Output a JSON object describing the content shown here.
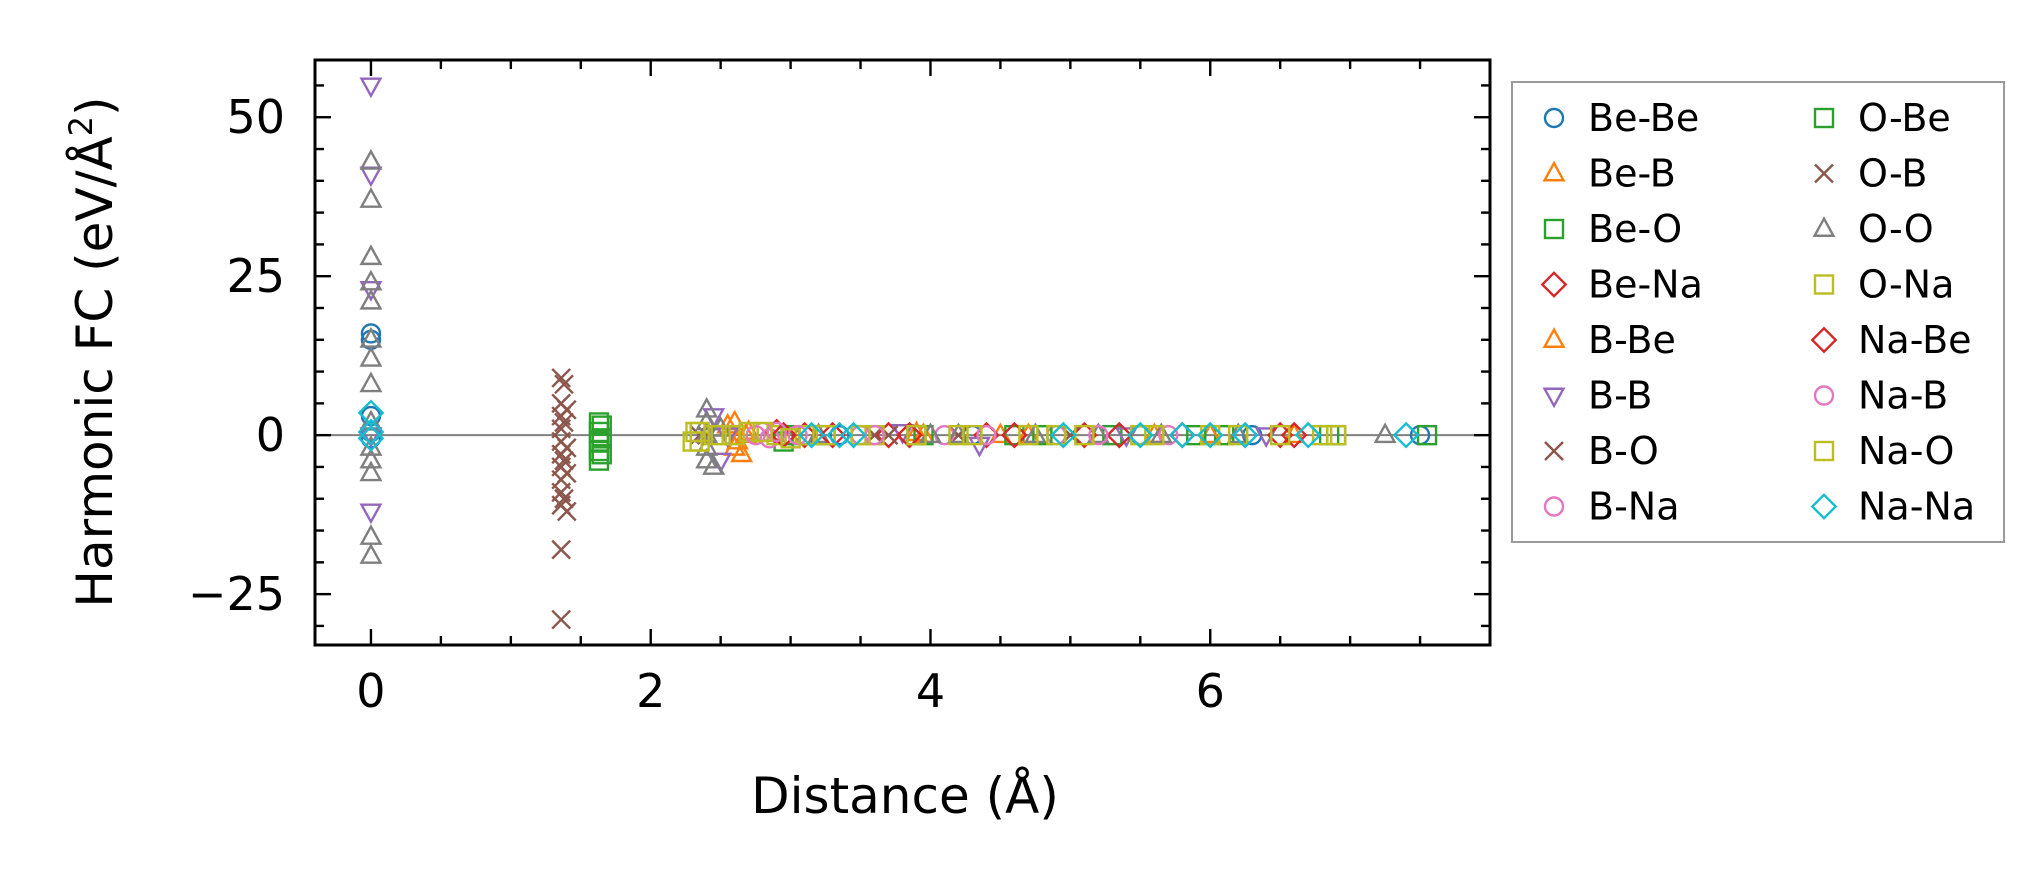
{
  "chart_data": {
    "type": "scatter",
    "xlabel": "Distance (Å)",
    "ylabel_main": "Harmonic FC (eV/Å",
    "ylabel_sup": "2",
    "ylabel_end": ")",
    "xlim": [
      -0.4,
      8.0
    ],
    "ylim": [
      -33,
      59
    ],
    "xticks": [
      0,
      2,
      4,
      6
    ],
    "xtick_labels": [
      "0",
      "2",
      "4",
      "6"
    ],
    "yticks": [
      -25,
      0,
      25,
      50
    ],
    "ytick_labels": [
      "−25",
      "0",
      "25",
      "50"
    ],
    "xminor_step": 0.5,
    "yminor_step": 5,
    "zero_line": true,
    "grid": false,
    "legend_position": "outside-right",
    "legend_columns": 2,
    "series": [
      {
        "name": "Be-Be",
        "marker": "circle",
        "color": "#1f77b4",
        "points": [
          [
            0,
            16
          ],
          [
            0,
            15
          ],
          [
            0,
            3
          ],
          [
            0,
            0.5
          ],
          [
            0,
            -0.5
          ],
          [
            3.35,
            0
          ],
          [
            4.3,
            0
          ],
          [
            5.5,
            0
          ],
          [
            6.3,
            0
          ],
          [
            7.5,
            0
          ]
        ]
      },
      {
        "name": "Be-B",
        "marker": "triangle-up",
        "color": "#ff7f0e",
        "points": [
          [
            2.6,
            2
          ],
          [
            2.62,
            -1
          ],
          [
            2.65,
            -3
          ],
          [
            2.7,
            0.5
          ],
          [
            3.9,
            0.3
          ],
          [
            4.5,
            0
          ],
          [
            5.6,
            0
          ],
          [
            6.6,
            0
          ]
        ]
      },
      {
        "name": "Be-O",
        "marker": "square",
        "color": "#2ca02c",
        "points": [
          [
            1.63,
            2
          ],
          [
            1.63,
            0.5
          ],
          [
            1.63,
            -1
          ],
          [
            1.63,
            -2.5
          ],
          [
            1.63,
            -4
          ],
          [
            2.95,
            -1
          ],
          [
            3.25,
            0
          ],
          [
            3.9,
            0
          ],
          [
            4.6,
            0
          ],
          [
            5.3,
            0
          ],
          [
            6.1,
            0
          ],
          [
            6.9,
            0
          ],
          [
            7.55,
            0
          ]
        ]
      },
      {
        "name": "Be-Na",
        "marker": "diamond",
        "color": "#d62728",
        "points": [
          [
            2.9,
            0.5
          ],
          [
            3.1,
            0
          ],
          [
            3.7,
            0
          ],
          [
            4.4,
            0
          ],
          [
            5.1,
            0
          ],
          [
            5.8,
            0
          ],
          [
            6.6,
            0
          ]
        ]
      },
      {
        "name": "B-Be",
        "marker": "triangle-up",
        "color": "#ff7f0e",
        "points": [
          [
            2.55,
            1.5
          ],
          [
            2.6,
            -2
          ],
          [
            2.68,
            0
          ],
          [
            3.95,
            0
          ],
          [
            4.7,
            0
          ],
          [
            6.0,
            0
          ]
        ]
      },
      {
        "name": "B-B",
        "marker": "triangle-down",
        "color": "#9467bd",
        "points": [
          [
            0,
            55
          ],
          [
            0,
            41
          ],
          [
            0,
            23
          ],
          [
            0,
            0
          ],
          [
            0,
            -12
          ],
          [
            2.45,
            3
          ],
          [
            2.5,
            -4
          ],
          [
            2.55,
            0
          ],
          [
            3.8,
            0.5
          ],
          [
            4.35,
            -1.5
          ],
          [
            5.4,
            0
          ],
          [
            6.4,
            0
          ]
        ]
      },
      {
        "name": "B-O",
        "marker": "x",
        "color": "#8c564b",
        "points": [
          [
            1.36,
            9
          ],
          [
            1.36,
            5
          ],
          [
            1.36,
            3
          ],
          [
            1.36,
            1
          ],
          [
            1.36,
            -1
          ],
          [
            1.36,
            -3
          ],
          [
            1.36,
            -5
          ],
          [
            1.36,
            -7
          ],
          [
            1.36,
            -9
          ],
          [
            1.36,
            -11
          ],
          [
            1.36,
            -18
          ],
          [
            1.36,
            -29
          ],
          [
            1.4,
            4
          ],
          [
            1.4,
            -2
          ],
          [
            1.4,
            -6
          ],
          [
            1.4,
            -12
          ],
          [
            2.35,
            0
          ],
          [
            3.6,
            0
          ],
          [
            4.2,
            0
          ],
          [
            5.0,
            0
          ]
        ]
      },
      {
        "name": "B-Na",
        "marker": "circle",
        "color": "#e377c2",
        "points": [
          [
            2.8,
            0.5
          ],
          [
            2.85,
            -0.5
          ],
          [
            3.0,
            0
          ],
          [
            3.5,
            0
          ],
          [
            4.1,
            0
          ],
          [
            4.9,
            0
          ],
          [
            5.7,
            0
          ]
        ]
      },
      {
        "name": "O-Be",
        "marker": "square",
        "color": "#2ca02c",
        "points": [
          [
            1.65,
            1.5
          ],
          [
            1.65,
            -0.5
          ],
          [
            1.65,
            -3
          ],
          [
            3.0,
            0
          ],
          [
            3.95,
            0
          ],
          [
            4.8,
            0
          ],
          [
            5.9,
            0
          ],
          [
            6.85,
            0
          ]
        ]
      },
      {
        "name": "O-B",
        "marker": "x",
        "color": "#8c564b",
        "points": [
          [
            1.38,
            8
          ],
          [
            1.38,
            2
          ],
          [
            1.38,
            -4
          ],
          [
            1.38,
            -10
          ],
          [
            2.4,
            0
          ],
          [
            3.7,
            0
          ]
        ]
      },
      {
        "name": "O-O",
        "marker": "triangle-up",
        "color": "#7f7f7f",
        "points": [
          [
            0,
            43
          ],
          [
            0,
            37
          ],
          [
            0,
            28
          ],
          [
            0,
            24
          ],
          [
            0,
            21
          ],
          [
            0,
            15
          ],
          [
            0,
            12
          ],
          [
            0,
            8
          ],
          [
            0,
            2
          ],
          [
            0,
            -2
          ],
          [
            0,
            -4
          ],
          [
            0,
            -6
          ],
          [
            0,
            -16
          ],
          [
            0,
            -19
          ],
          [
            2.4,
            4
          ],
          [
            2.4,
            2
          ],
          [
            2.4,
            0
          ],
          [
            2.4,
            -2
          ],
          [
            2.4,
            -4
          ],
          [
            2.45,
            -5
          ],
          [
            2.5,
            1
          ],
          [
            3.2,
            0
          ],
          [
            4.0,
            0
          ],
          [
            4.2,
            0
          ],
          [
            4.75,
            0
          ],
          [
            5.2,
            0
          ],
          [
            5.65,
            0
          ],
          [
            6.2,
            0
          ],
          [
            7.25,
            0
          ]
        ]
      },
      {
        "name": "O-Na",
        "marker": "square",
        "color": "#bcbd22",
        "points": [
          [
            2.35,
            0.5
          ],
          [
            2.35,
            -1
          ],
          [
            2.5,
            0
          ],
          [
            2.7,
            0.5
          ],
          [
            2.9,
            0
          ],
          [
            3.1,
            0
          ],
          [
            3.6,
            0
          ],
          [
            4.2,
            0
          ],
          [
            4.9,
            0
          ],
          [
            5.5,
            0
          ],
          [
            6.2,
            0
          ],
          [
            6.9,
            0
          ]
        ]
      },
      {
        "name": "Na-Be",
        "marker": "diamond",
        "color": "#d62728",
        "points": [
          [
            2.95,
            0
          ],
          [
            3.3,
            0
          ],
          [
            3.85,
            0
          ],
          [
            4.6,
            0
          ],
          [
            5.35,
            0
          ],
          [
            6.5,
            0
          ]
        ]
      },
      {
        "name": "Na-B",
        "marker": "circle",
        "color": "#e377c2",
        "points": [
          [
            2.75,
            0
          ],
          [
            2.9,
            0.5
          ],
          [
            3.05,
            0
          ],
          [
            3.6,
            0
          ],
          [
            4.4,
            0
          ],
          [
            5.2,
            0
          ]
        ]
      },
      {
        "name": "Na-O",
        "marker": "square",
        "color": "#bcbd22",
        "points": [
          [
            2.3,
            -1
          ],
          [
            2.32,
            0.5
          ],
          [
            2.45,
            0
          ],
          [
            2.6,
            0
          ],
          [
            2.8,
            0.5
          ],
          [
            3.0,
            -0.5
          ],
          [
            3.25,
            0
          ],
          [
            3.5,
            0
          ],
          [
            3.9,
            0
          ],
          [
            4.3,
            0
          ],
          [
            4.7,
            0
          ],
          [
            5.1,
            0
          ],
          [
            5.6,
            0
          ],
          [
            6.0,
            0
          ],
          [
            6.5,
            0
          ],
          [
            6.8,
            0
          ]
        ]
      },
      {
        "name": "Na-Na",
        "marker": "diamond",
        "color": "#17becf",
        "points": [
          [
            0,
            3.5
          ],
          [
            0,
            0.5
          ],
          [
            0,
            -0.5
          ],
          [
            3.15,
            0
          ],
          [
            3.35,
            0
          ],
          [
            3.45,
            0
          ],
          [
            4.95,
            0
          ],
          [
            5.5,
            0
          ],
          [
            5.8,
            0
          ],
          [
            6.0,
            0
          ],
          [
            6.25,
            0
          ],
          [
            6.7,
            0
          ],
          [
            7.4,
            0
          ]
        ]
      }
    ]
  }
}
